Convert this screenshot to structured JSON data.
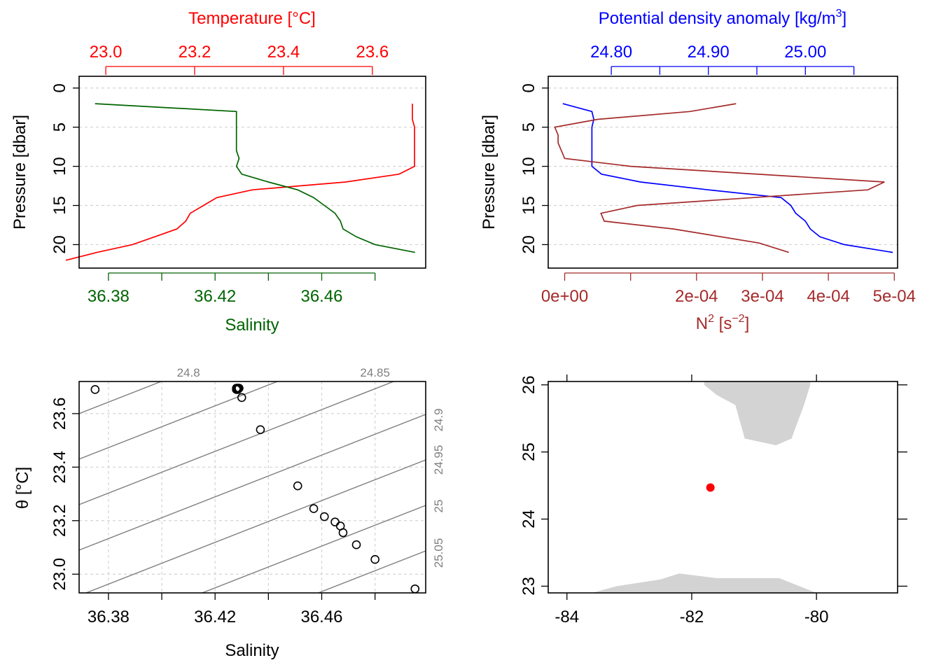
{
  "colors": {
    "temperature": "#ff0000",
    "salinity": "#006400",
    "density": "#0000ff",
    "n2": "#a52a2a",
    "isopycnal": "#7f7f7f",
    "land": "#d3d3d3",
    "station": "#ff0000"
  },
  "chart_data": [
    {
      "type": "line",
      "panel": "top-left",
      "ylabel": "Pressure [dbar]",
      "ylim": [
        23,
        -1.5
      ],
      "y_ticks": [
        "0",
        "5",
        "10",
        "15",
        "20"
      ],
      "grid": true,
      "top_axis": {
        "label": "Temperature [°C]",
        "ticks": [
          "23.0",
          "23.2",
          "23.4",
          "23.6"
        ],
        "xlim": [
          22.94,
          23.72
        ]
      },
      "bottom_axis": {
        "label": "Salinity",
        "ticks": [
          "36.38",
          "36.42",
          "36.46"
        ],
        "xlim": [
          36.369,
          36.499
        ]
      },
      "series": [
        {
          "name": "Temperature [°C]",
          "axis": "top",
          "x": [
            23.69,
            23.69,
            23.69,
            23.695,
            23.695,
            23.695,
            23.695,
            23.695,
            23.695,
            23.66,
            23.54,
            23.33,
            23.25,
            23.22,
            23.19,
            23.18,
            23.16,
            23.11,
            23.06,
            22.98,
            22.91
          ],
          "y": [
            2,
            3,
            4,
            5,
            6,
            7,
            8,
            9,
            10,
            11,
            12,
            13,
            14,
            15,
            16,
            17,
            18,
            19,
            20,
            21,
            22
          ]
        },
        {
          "name": "Salinity",
          "axis": "bottom",
          "x": [
            36.375,
            36.428,
            36.428,
            36.428,
            36.428,
            36.428,
            36.428,
            36.429,
            36.428,
            36.43,
            36.44,
            36.451,
            36.457,
            36.461,
            36.465,
            36.467,
            36.468,
            36.473,
            36.48,
            36.495
          ],
          "y": [
            2,
            3,
            4,
            5,
            6,
            7,
            8,
            9,
            10,
            11,
            12,
            13,
            14,
            15,
            16,
            17,
            18,
            19,
            20,
            21
          ]
        }
      ]
    },
    {
      "type": "line",
      "panel": "top-right",
      "ylabel": "Pressure [dbar]",
      "ylim": [
        23,
        -1.5
      ],
      "y_ticks": [
        "0",
        "5",
        "10",
        "15",
        "20"
      ],
      "grid": true,
      "top_axis": {
        "label": "Potential density anomaly [kg/m",
        "label_sup": "3",
        "label_end": "]",
        "ticks": [
          "24.80",
          "24.90",
          "25.00"
        ],
        "minor_ticks": [
          24.85,
          24.95,
          25.05
        ],
        "xlim": [
          24.735,
          25.095
        ]
      },
      "bottom_axis": {
        "label": "N",
        "label_sup": "2",
        "label_mid": " [s",
        "label_sup2": "−2",
        "label_end": "]",
        "ticks": [
          "0e+00",
          "2e-04",
          "3e-04",
          "4e-04",
          "5e-04"
        ],
        "tick_values": [
          0,
          0.0002,
          0.0003,
          0.0004,
          0.0005
        ],
        "minor_ticks": [
          0.0001
        ],
        "xlim": [
          -2.5e-05,
          0.000505
        ]
      },
      "series": [
        {
          "name": "Potential density anomaly",
          "axis": "top",
          "x": [
            24.75,
            24.78,
            24.782,
            24.78,
            24.78,
            24.78,
            24.78,
            24.78,
            24.78,
            24.79,
            24.83,
            24.9,
            24.975,
            24.985,
            24.99,
            25.0,
            25.005,
            25.015,
            25.04,
            25.09
          ],
          "y": [
            2,
            3,
            4,
            5,
            6,
            7,
            8,
            9,
            10,
            11,
            12,
            13,
            14,
            15,
            16,
            17,
            18,
            19,
            20,
            21
          ]
        },
        {
          "name": "N^2",
          "axis": "bottom",
          "x": [
            0.00026,
            0.00019,
            5e-05,
            -1.5e-05,
            -1e-05,
            -1e-05,
            -5e-06,
            0.0,
            0.0001,
            0.000485,
            0.00046,
            0.000285,
            0.00011,
            5.5e-05,
            6e-05,
            0.000165,
            0.000295,
            0.00034
          ],
          "y": [
            2,
            3,
            4,
            5,
            6,
            7,
            8,
            9,
            10,
            12,
            13,
            14,
            15,
            16,
            17,
            18,
            19.8,
            21
          ]
        }
      ]
    },
    {
      "type": "scatter",
      "panel": "bottom-left",
      "xlabel": "Salinity",
      "ylabel": "θ [°C]",
      "xlim": [
        36.369,
        36.499
      ],
      "ylim": [
        22.93,
        23.72
      ],
      "x_ticks": [
        "36.38",
        "36.42",
        "36.46"
      ],
      "y_ticks": [
        "23.0",
        "23.2",
        "23.4",
        "23.6"
      ],
      "grid": true,
      "isopycnal_labels": [
        "24.8",
        "24.85",
        "24.9",
        "24.95",
        "25",
        "25.05"
      ],
      "points": {
        "x": [
          36.375,
          36.428,
          36.4285,
          36.428,
          36.4283,
          36.4287,
          36.429,
          36.43,
          36.437,
          36.451,
          36.457,
          36.461,
          36.465,
          36.467,
          36.468,
          36.473,
          36.48,
          36.495
        ],
        "y": [
          23.69,
          23.69,
          23.69,
          23.695,
          23.695,
          23.695,
          23.695,
          23.66,
          23.54,
          23.33,
          23.245,
          23.215,
          23.195,
          23.18,
          23.155,
          23.11,
          23.055,
          22.945
        ]
      }
    },
    {
      "type": "map",
      "panel": "bottom-right",
      "xlim": [
        -84.3,
        -78.7
      ],
      "ylim": [
        22.9,
        26.05
      ],
      "x_ticks": [
        "-84",
        "-82",
        "-80"
      ],
      "x_tick_values": [
        -84,
        -82,
        -80
      ],
      "y_ticks": [
        "23",
        "24",
        "25",
        "26"
      ],
      "y_tick_values": [
        23,
        24,
        25,
        26
      ],
      "station": {
        "lon": -81.7,
        "lat": 24.47
      }
    }
  ]
}
